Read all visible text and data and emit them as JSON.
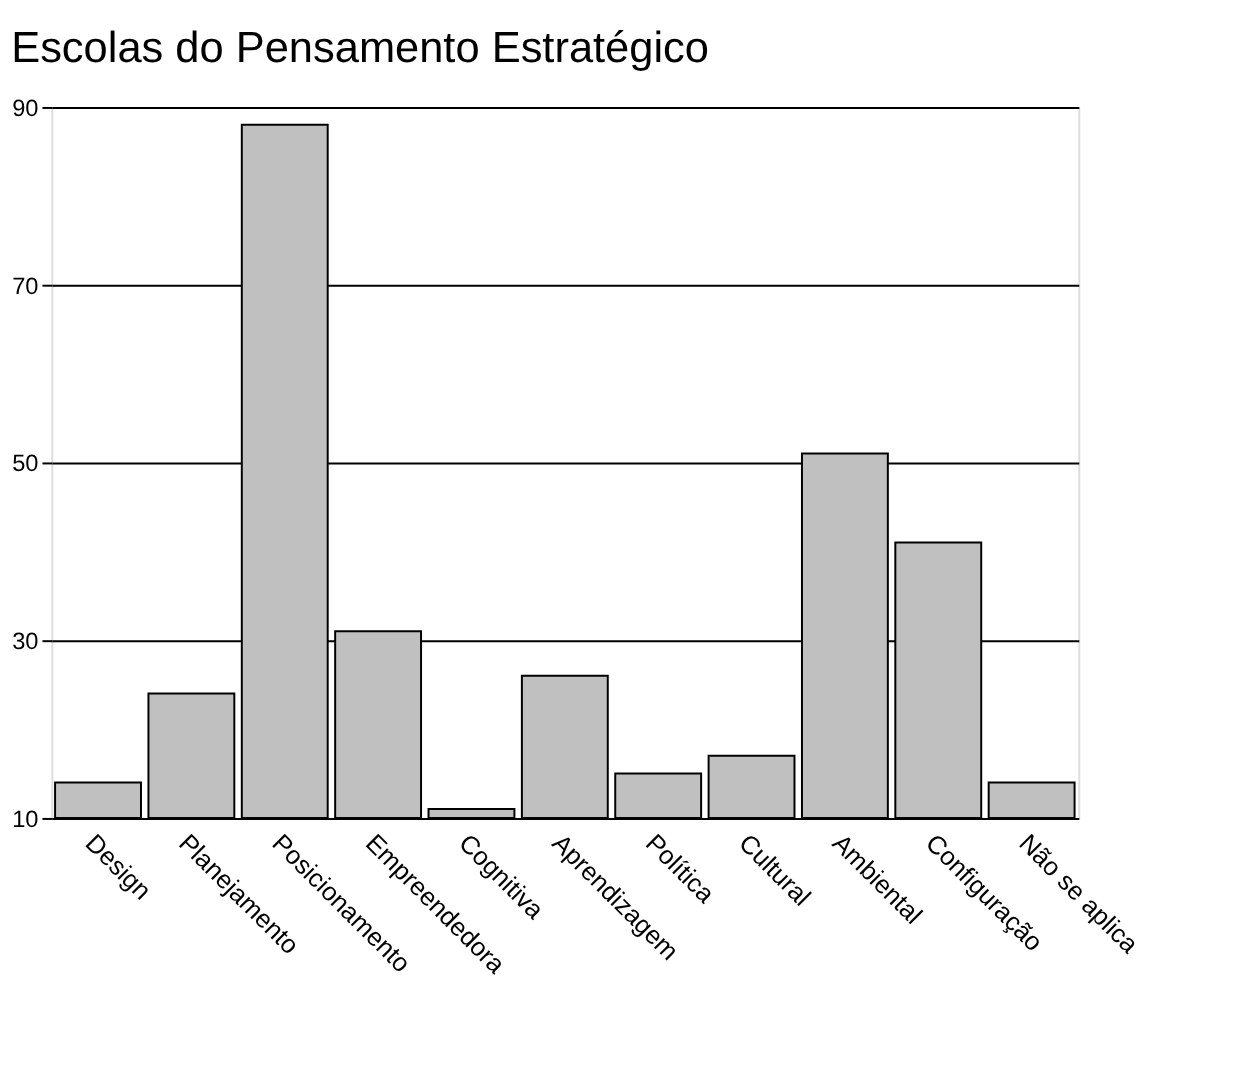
{
  "chart_data": {
    "type": "bar",
    "title": "Escolas do Pensamento Estratégico",
    "categories": [
      "Design",
      "Planejamento",
      "Posicionamento",
      "Empreendedora",
      "Cognitiva",
      "Aprendizagem",
      "Política",
      "Cultural",
      "Ambiental",
      "Configuração",
      "Não se aplica"
    ],
    "values": [
      14,
      24,
      88,
      31,
      11,
      26,
      15,
      17,
      51,
      41,
      14
    ],
    "color": "#c0c0c0",
    "ylim": [
      10,
      90
    ],
    "yticks": [
      10,
      30,
      50,
      70,
      90
    ],
    "grid": "y"
  }
}
